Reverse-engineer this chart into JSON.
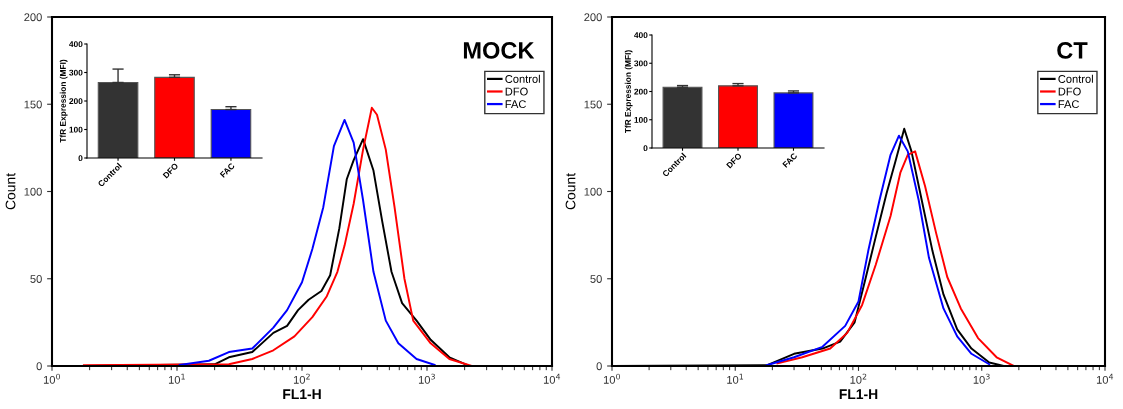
{
  "chart_data": [
    {
      "type": "line",
      "title": "MOCK",
      "xlabel": "FL1-H",
      "ylabel": "Count",
      "log": "x",
      "legend": "top right",
      "xlim": [
        1,
        10000
      ],
      "xticks": [
        {
          "value": 1,
          "label": "10$^{0}$"
        },
        {
          "value": 10,
          "label": "10$^{1}$"
        },
        {
          "value": 100,
          "label": "10$^{2}$"
        },
        {
          "value": 1000,
          "label": "10$^{3}$"
        },
        {
          "value": 10000,
          "label": "10$^{4}$"
        }
      ],
      "ylim": [
        0,
        200
      ],
      "yticks": [
        0,
        50,
        100,
        150,
        200
      ],
      "series": [
        {
          "name": "Control",
          "color": "#000000",
          "x": [
            1.8,
            20,
            26,
            30,
            40,
            59,
            76,
            93,
            113,
            143,
            168,
            199,
            228,
            259,
            308,
            373,
            438,
            520,
            632,
            825,
            1070,
            1510,
            2090
          ],
          "values": [
            0,
            1,
            5,
            6,
            8,
            19,
            23,
            32,
            38,
            43,
            52,
            79,
            107,
            118,
            130,
            112,
            83,
            54,
            36,
            26,
            15,
            5,
            0.6
          ]
        },
        {
          "name": "DFO",
          "color": "#ff0000",
          "x": [
            1.8,
            26,
            40,
            59,
            87,
            121,
            158,
            192,
            219,
            259,
            308,
            362,
            398,
            468,
            550,
            660,
            776,
            1070,
            1510,
            2240
          ],
          "values": [
            0.5,
            1,
            4,
            9,
            17,
            28,
            40,
            54,
            69,
            93,
            124,
            148,
            144,
            124,
            91,
            50,
            26,
            13,
            4,
            0.2
          ]
        },
        {
          "name": "FAC",
          "color": "#0000ff",
          "x": [
            10.5,
            18,
            26,
            40,
            59,
            76,
            100,
            121,
            148,
            180,
            219,
            259,
            308,
            373,
            468,
            590,
            825,
            1150
          ],
          "values": [
            0.6,
            3,
            8,
            10,
            22,
            32,
            48,
            67,
            91,
            126,
            141,
            128,
            95,
            54,
            26,
            13,
            4,
            0.6
          ]
        }
      ]
    },
    {
      "type": "bar",
      "ylabel": "TfR Expression (MFI)",
      "categories": [
        "Control",
        "DFO",
        "FAC"
      ],
      "values": [
        265,
        283,
        170
      ],
      "colors": [
        "#333333",
        "#ff0000",
        "#0000ff"
      ],
      "errors": [
        [
          265,
          312
        ],
        [
          283,
          292
        ],
        [
          170,
          180
        ]
      ],
      "ylim": [
        0,
        400
      ],
      "yticks": [
        0,
        100,
        200,
        300,
        400
      ]
    },
    {
      "type": "line",
      "title": "CT",
      "xlabel": "FL1-H",
      "ylabel": "Count",
      "log": "x",
      "legend": "top right",
      "xlim": [
        1,
        10000
      ],
      "xticks": [
        {
          "value": 1,
          "label": "10$^{0}$"
        },
        {
          "value": 10,
          "label": "10$^{1}$"
        },
        {
          "value": 100,
          "label": "10$^{2}$"
        },
        {
          "value": 1000,
          "label": "10$^{3}$"
        },
        {
          "value": 10000,
          "label": "10$^{4}$"
        }
      ],
      "ylim": [
        0,
        200
      ],
      "yticks": [
        0,
        50,
        100,
        150,
        200
      ],
      "series": [
        {
          "name": "Control",
          "color": "#000000",
          "x": [
            1,
            18,
            30,
            51,
            71,
            93,
            113,
            138,
            169,
            199,
            235,
            269,
            326,
            398,
            489,
            632,
            825,
            1150,
            1510
          ],
          "values": [
            0,
            0.4,
            7,
            10,
            14,
            25,
            49,
            74,
            99,
            117,
            136,
            123,
            95,
            66,
            41,
            21,
            10,
            2,
            0
          ]
        },
        {
          "name": "DFO",
          "color": "#ff0000",
          "x": [
            22,
            35,
            59,
            81,
            107,
            138,
            182,
            219,
            251,
            288,
            347,
            427,
            525,
            676,
            933,
            1320,
            1820
          ],
          "values": [
            1.5,
            5,
            10,
            19,
            35,
            58,
            86,
            111,
            121,
            123,
            103,
            76,
            51,
            33,
            16,
            5,
            0
          ]
        },
        {
          "name": "FAC",
          "color": "#0000ff",
          "x": [
            18,
            30,
            51,
            78,
            100,
            120,
            148,
            182,
            213,
            251,
            308,
            373,
            489,
            632,
            825,
            1150
          ],
          "values": [
            0.4,
            5,
            11,
            23,
            37,
            66,
            95,
            121,
            132,
            123,
            95,
            62,
            33,
            17,
            7,
            1
          ]
        }
      ]
    },
    {
      "type": "bar",
      "ylabel": "TfR Expression (MFI)",
      "categories": [
        "Control",
        "DFO",
        "FAC"
      ],
      "values": [
        215,
        220,
        195
      ],
      "colors": [
        "#333333",
        "#ff0000",
        "#0000ff"
      ],
      "errors": [
        [
          215,
          221
        ],
        [
          220,
          228
        ],
        [
          195,
          202
        ]
      ],
      "ylim": [
        0,
        400
      ],
      "yticks": [
        0,
        100,
        200,
        300,
        400
      ]
    }
  ]
}
